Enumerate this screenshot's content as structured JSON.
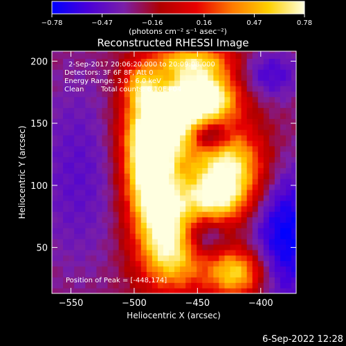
{
  "chart_data": {
    "type": "heatmap",
    "title": "Reconstructed RHESSI Image",
    "xlabel": "Heliocentric X (arcsec)",
    "ylabel": "Heliocentric Y (arcsec)",
    "xlim": [
      -565,
      -372
    ],
    "ylim": [
      13,
      208
    ],
    "x_ticks": [
      -550,
      -500,
      -450,
      -400
    ],
    "y_ticks": [
      50,
      100,
      150,
      200
    ],
    "x_tick_labels": [
      "−550",
      "−500",
      "−450",
      "−400"
    ],
    "y_tick_labels": [
      "50",
      "100",
      "150",
      "200"
    ],
    "colorbar": {
      "vmin": -0.78,
      "vmax": 0.78,
      "tick_values": [
        -0.78,
        -0.47,
        -0.16,
        0.16,
        0.47,
        0.78
      ],
      "tick_labels": [
        "−0.78",
        "−0.47",
        "−0.16",
        "0.16",
        "0.47",
        "0.78"
      ],
      "unit_label": "(photons cm⁻² s⁻¹ asec⁻²)",
      "colors": [
        "#0000ff",
        "#4a00d8",
        "#7a1fa8",
        "#b00000",
        "#e80000",
        "#ff7a00",
        "#ffd000",
        "#ffffe0"
      ]
    },
    "annotations": [
      "2-Sep-2017 20:06:20.000 to 20:09:08.000",
      "Detectors: 3F 6F 8F, Att 0",
      "Energy Range: 3.0 - 6.0 keV",
      "Clean",
      "Total counts: 6.10E+04"
    ],
    "peak_label": "Position of Peak = [-448,174]",
    "peak": [
      -448,
      174
    ],
    "features": [
      {
        "cx": -445,
        "cy": 172,
        "sx": 20,
        "sy": 14,
        "amp": 1.15
      },
      {
        "cx": -475,
        "cy": 150,
        "sx": 20,
        "sy": 20,
        "amp": 1.1
      },
      {
        "cx": -490,
        "cy": 120,
        "sx": 13,
        "sy": 25,
        "amp": 0.9
      },
      {
        "cx": -480,
        "cy": 85,
        "sx": 16,
        "sy": 25,
        "amp": 0.85
      },
      {
        "cx": -470,
        "cy": 45,
        "sx": 18,
        "sy": 22,
        "amp": 0.8
      },
      {
        "cx": -425,
        "cy": 115,
        "sx": 20,
        "sy": 22,
        "amp": 0.95
      },
      {
        "cx": -438,
        "cy": 88,
        "sx": 18,
        "sy": 15,
        "amp": 0.7
      },
      {
        "cx": -420,
        "cy": 30,
        "sx": 16,
        "sy": 14,
        "amp": 0.85
      },
      {
        "cx": -455,
        "cy": 200,
        "sx": 25,
        "sy": 10,
        "amp": 0.75
      },
      {
        "cx": -495,
        "cy": 180,
        "sx": 10,
        "sy": 12,
        "amp": 0.6
      },
      {
        "cx": -440,
        "cy": 140,
        "sx": 10,
        "sy": 8,
        "amp": -0.6
      },
      {
        "cx": -445,
        "cy": 60,
        "sx": 12,
        "sy": 12,
        "amp": -0.45
      },
      {
        "cx": -380,
        "cy": 60,
        "sx": 20,
        "sy": 40,
        "amp": -0.55
      },
      {
        "cx": -545,
        "cy": 110,
        "sx": 25,
        "sy": 60,
        "amp": -0.25
      },
      {
        "cx": -395,
        "cy": 190,
        "sx": 20,
        "sy": 15,
        "amp": -0.35
      }
    ],
    "background_level": -0.22,
    "grid": false
  },
  "footer": {
    "timestamp": "6-Sep-2022 12:28"
  }
}
